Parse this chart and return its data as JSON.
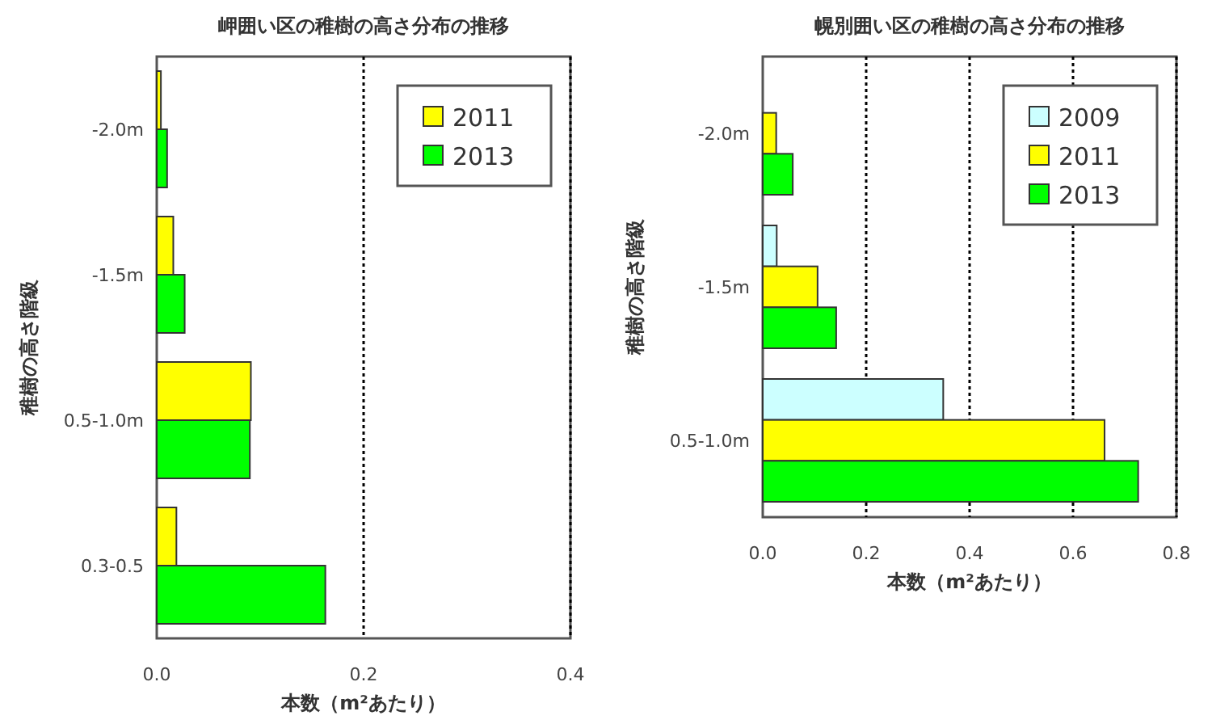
{
  "chart_data": [
    {
      "type": "bar",
      "orientation": "horizontal",
      "title": "岬囲い区の稚樹の高さ分布の推移",
      "xlabel": "本数（m²あたり）",
      "ylabel": "稚樹の高さ階級",
      "categories": [
        "-2.0m",
        "-1.5m",
        "0.5-1.0m",
        "0.3-0.5"
      ],
      "series": [
        {
          "name": "2011",
          "color": "#ffff00",
          "values": [
            0.004,
            0.016,
            0.091,
            0.019
          ]
        },
        {
          "name": "2013",
          "color": "#00ff00",
          "values": [
            0.01,
            0.027,
            0.09,
            0.163
          ]
        }
      ],
      "xlim": [
        0,
        0.4
      ],
      "xticks": [
        {
          "value": 0,
          "label": "0.0"
        },
        {
          "value": 0.2,
          "label": "0.2"
        },
        {
          "value": 0.4,
          "label": "0.4"
        }
      ],
      "grid": "x",
      "legend": "top right"
    },
    {
      "type": "bar",
      "orientation": "horizontal",
      "title": "幌別囲い区の稚樹の高さ分布の推移",
      "xlabel": "本数（m²あたり）",
      "ylabel": "稚樹の高さ階級",
      "categories": [
        "-2.0m",
        "-1.5m",
        "0.5-1.0m"
      ],
      "series": [
        {
          "name": "2009",
          "color": "#ccffff",
          "values": [
            0,
            0.027,
            0.349
          ]
        },
        {
          "name": "2011",
          "color": "#ffff00",
          "values": [
            0.026,
            0.106,
            0.661
          ]
        },
        {
          "name": "2013",
          "color": "#00ff00",
          "values": [
            0.058,
            0.142,
            0.726
          ]
        }
      ],
      "xlim": [
        0,
        0.8
      ],
      "xticks": [
        {
          "value": 0,
          "label": "0.0"
        },
        {
          "value": 0.2,
          "label": "0.2"
        },
        {
          "value": 0.4,
          "label": "0.4"
        },
        {
          "value": 0.6,
          "label": "0.6"
        },
        {
          "value": 0.8,
          "label": "0.8"
        }
      ],
      "grid": "x",
      "legend": "top right"
    }
  ]
}
